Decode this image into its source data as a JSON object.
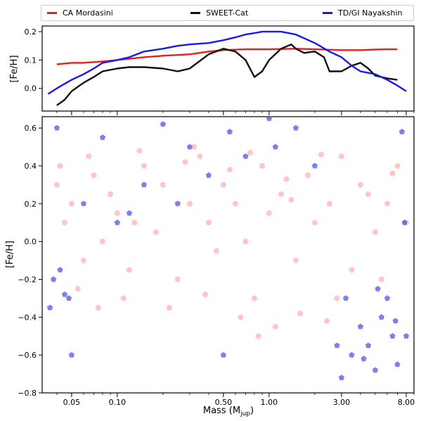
{
  "colors": {
    "mordasini": "#e8201d",
    "sweet": "#111111",
    "nayakshin": "#1a1ae6",
    "scatter_red": "#ff5a5f",
    "scatter_blue": "#2a2ae0"
  },
  "legend": [
    {
      "label": "CA Mordasini",
      "color": "#e8201d"
    },
    {
      "label": "SWEET-Cat",
      "color": "#111111"
    },
    {
      "label": "TD/GI Nayakshin",
      "color": "#1a1ae6"
    }
  ],
  "chart_data": [
    {
      "type": "line",
      "ylabel": "[Fe/H]",
      "xscale": "log",
      "xlim": [
        0.032,
        9.0
      ],
      "ylim": [
        -0.08,
        0.22
      ],
      "yticks": [
        0.0,
        0.1,
        0.2
      ],
      "ytick_labels": [
        "0.0",
        "0.1",
        "0.2"
      ],
      "series": [
        {
          "name": "CA Mordasini",
          "x": [
            0.04,
            0.05,
            0.06,
            0.08,
            0.1,
            0.15,
            0.2,
            0.3,
            0.4,
            0.5,
            0.7,
            1.0,
            1.5,
            2.0,
            3.0,
            4.0,
            5.0,
            6.0,
            7.0
          ],
          "y": [
            0.085,
            0.09,
            0.09,
            0.095,
            0.1,
            0.11,
            0.115,
            0.12,
            0.13,
            0.135,
            0.138,
            0.138,
            0.14,
            0.138,
            0.135,
            0.135,
            0.137,
            0.138,
            0.138
          ]
        },
        {
          "name": "SWEET-Cat",
          "x": [
            0.04,
            0.045,
            0.05,
            0.06,
            0.07,
            0.08,
            0.1,
            0.12,
            0.15,
            0.2,
            0.25,
            0.3,
            0.4,
            0.5,
            0.6,
            0.7,
            0.8,
            0.9,
            1.0,
            1.2,
            1.4,
            1.5,
            1.7,
            2.0,
            2.3,
            2.5,
            3.0,
            3.5,
            4.0,
            4.5,
            5.0,
            6.0,
            7.0
          ],
          "y": [
            -0.06,
            -0.04,
            -0.01,
            0.02,
            0.04,
            0.06,
            0.07,
            0.075,
            0.075,
            0.07,
            0.06,
            0.07,
            0.12,
            0.14,
            0.13,
            0.1,
            0.04,
            0.06,
            0.1,
            0.14,
            0.155,
            0.14,
            0.125,
            0.13,
            0.11,
            0.06,
            0.06,
            0.08,
            0.09,
            0.07,
            0.045,
            0.035,
            0.03
          ]
        },
        {
          "name": "TD/GI Nayakshin",
          "x": [
            0.035,
            0.04,
            0.05,
            0.06,
            0.07,
            0.08,
            0.1,
            0.12,
            0.15,
            0.2,
            0.25,
            0.3,
            0.4,
            0.5,
            0.6,
            0.7,
            0.8,
            0.9,
            1.0,
            1.2,
            1.5,
            2.0,
            2.5,
            3.0,
            3.5,
            4.0,
            5.0,
            6.0,
            7.0,
            8.0
          ],
          "y": [
            -0.02,
            0.0,
            0.03,
            0.05,
            0.07,
            0.09,
            0.1,
            0.11,
            0.13,
            0.14,
            0.15,
            0.155,
            0.16,
            0.17,
            0.18,
            0.19,
            0.195,
            0.2,
            0.2,
            0.2,
            0.19,
            0.16,
            0.13,
            0.11,
            0.08,
            0.06,
            0.05,
            0.03,
            0.01,
            -0.01
          ]
        }
      ]
    },
    {
      "type": "scatter",
      "xlabel": "Mass (M",
      "xlabel_sub": "jup",
      "xlabel_close": ")",
      "ylabel": "[Fe/H]",
      "xscale": "log",
      "xlim": [
        0.032,
        9.0
      ],
      "ylim": [
        -0.8,
        0.66
      ],
      "xticks": [
        0.05,
        0.1,
        0.5,
        1.0,
        3.0,
        8.0
      ],
      "xtick_labels": [
        "0.05",
        "0.10",
        "0.50",
        "1.00",
        "3.00",
        "8.00"
      ],
      "yticks": [
        -0.8,
        -0.6,
        -0.4,
        -0.2,
        0.0,
        0.2,
        0.4,
        0.6
      ],
      "ytick_labels": [
        "−0.8",
        "−0.6",
        "−0.4",
        "−0.2",
        "0.0",
        "0.2",
        "0.4",
        "0.6"
      ],
      "series": [
        {
          "name": "CA Mordasini",
          "marker": "circle",
          "color": "#ff5a5f",
          "x": [
            0.04,
            0.045,
            0.05,
            0.06,
            0.07,
            0.08,
            0.09,
            0.1,
            0.12,
            0.15,
            0.18,
            0.2,
            0.25,
            0.3,
            0.35,
            0.4,
            0.45,
            0.5,
            0.6,
            0.7,
            0.8,
            0.9,
            1.0,
            1.2,
            1.5,
            1.8,
            2.0,
            2.5,
            3.0,
            3.5,
            4.0,
            5.0,
            6.0,
            7.0,
            8.0,
            0.055,
            0.065,
            0.11,
            0.14,
            0.22,
            0.28,
            0.38,
            0.55,
            0.65,
            0.75,
            1.1,
            1.3,
            1.6,
            2.2,
            2.8,
            4.5,
            5.5,
            0.042,
            0.075,
            0.13,
            0.32,
            0.85,
            1.4,
            2.4,
            6.5
          ],
          "y": [
            0.3,
            0.1,
            0.2,
            -0.1,
            0.35,
            0.0,
            0.25,
            0.15,
            -0.15,
            0.4,
            0.05,
            0.3,
            -0.2,
            0.2,
            0.45,
            0.1,
            -0.05,
            0.3,
            0.2,
            0.0,
            -0.3,
            0.4,
            0.15,
            0.25,
            -0.1,
            0.35,
            0.1,
            0.2,
            0.45,
            -0.15,
            0.3,
            0.05,
            0.2,
            0.4,
            0.1,
            -0.25,
            0.45,
            -0.3,
            0.48,
            -0.35,
            0.42,
            -0.28,
            0.38,
            -0.4,
            0.47,
            -0.45,
            0.33,
            -0.38,
            0.46,
            -0.3,
            0.25,
            -0.2,
            0.4,
            -0.35,
            0.1,
            0.5,
            -0.5,
            0.22,
            -0.42,
            0.36
          ]
        },
        {
          "name": "TD/GI Nayakshin",
          "marker": "pentagon",
          "color": "#2a2ae0",
          "x": [
            0.036,
            0.038,
            0.04,
            0.045,
            0.05,
            0.06,
            0.08,
            0.1,
            0.15,
            0.2,
            0.3,
            0.5,
            0.55,
            0.7,
            1.0,
            1.5,
            2.0,
            3.0,
            3.5,
            4.0,
            4.5,
            5.0,
            5.5,
            6.0,
            6.5,
            7.0,
            7.5,
            8.0,
            2.8,
            3.2,
            0.042,
            0.048,
            1.1,
            0.12,
            0.25,
            0.4,
            5.2,
            6.8,
            7.8,
            4.2
          ],
          "y": [
            -0.35,
            -0.2,
            0.6,
            -0.28,
            -0.6,
            0.2,
            0.55,
            0.1,
            0.3,
            0.62,
            0.5,
            -0.6,
            0.58,
            0.45,
            0.65,
            0.6,
            0.4,
            -0.72,
            -0.6,
            -0.45,
            -0.55,
            -0.68,
            -0.4,
            -0.3,
            -0.5,
            -0.65,
            0.58,
            -0.5,
            -0.55,
            -0.3,
            -0.15,
            -0.3,
            0.5,
            0.15,
            0.2,
            0.35,
            -0.25,
            -0.42,
            0.1,
            -0.62
          ]
        }
      ]
    }
  ]
}
